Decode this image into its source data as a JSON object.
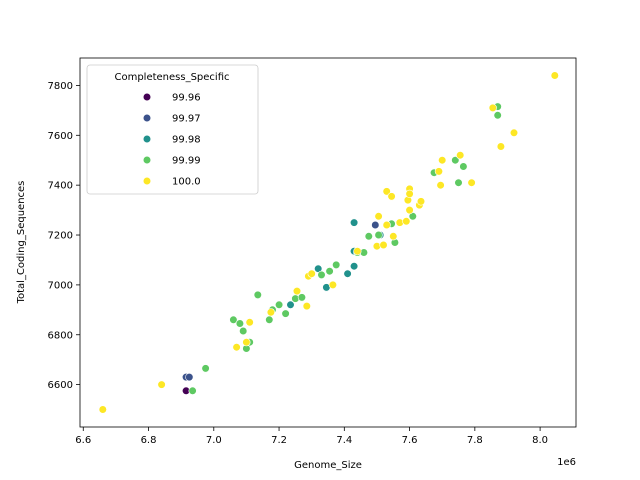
{
  "chart_data": {
    "type": "scatter",
    "xlabel": "Genome_Size",
    "ylabel": "Total_Coding_Sequences",
    "x_offset_label": "1e6",
    "xlim": [
      6.59,
      8.11
    ],
    "ylim": [
      6430,
      7910
    ],
    "x_ticks": [
      6.6,
      6.8,
      7.0,
      7.2,
      7.4,
      7.6,
      7.8,
      8.0
    ],
    "x_tick_labels": [
      "6.6",
      "6.8",
      "7.0",
      "7.2",
      "7.4",
      "7.6",
      "7.8",
      "8.0"
    ],
    "y_ticks": [
      6600,
      6800,
      7000,
      7200,
      7400,
      7600,
      7800
    ],
    "y_tick_labels": [
      "6600",
      "6800",
      "7000",
      "7200",
      "7400",
      "7600",
      "7800"
    ],
    "legend": {
      "title": "Completeness_Specific",
      "placement": "top-left",
      "entries": [
        {
          "label": "99.96",
          "color": "#440154"
        },
        {
          "label": "99.97",
          "color": "#3b528b"
        },
        {
          "label": "99.98",
          "color": "#21918c"
        },
        {
          "label": "99.99",
          "color": "#5ec962"
        },
        {
          "label": "100.0",
          "color": "#fde725"
        }
      ]
    },
    "series": [
      {
        "label": "99.96",
        "color": "#440154",
        "points": [
          [
            6.915,
            6575
          ]
        ]
      },
      {
        "label": "99.97",
        "color": "#3b528b",
        "points": [
          [
            6.915,
            6630
          ],
          [
            6.925,
            6630
          ],
          [
            7.495,
            7240
          ]
        ]
      },
      {
        "label": "99.98",
        "color": "#21918c",
        "points": [
          [
            7.235,
            6920
          ],
          [
            7.32,
            7065
          ],
          [
            7.345,
            6990
          ],
          [
            7.41,
            7045
          ],
          [
            7.43,
            7075
          ],
          [
            7.43,
            7135
          ],
          [
            7.43,
            7250
          ],
          [
            7.51,
            7200
          ]
        ]
      },
      {
        "label": "99.99",
        "color": "#5ec962",
        "points": [
          [
            6.935,
            6575
          ],
          [
            6.975,
            6665
          ],
          [
            7.06,
            6860
          ],
          [
            7.08,
            6845
          ],
          [
            7.09,
            6815
          ],
          [
            7.1,
            6745
          ],
          [
            7.11,
            6770
          ],
          [
            7.135,
            6960
          ],
          [
            7.17,
            6860
          ],
          [
            7.18,
            6900
          ],
          [
            7.2,
            6920
          ],
          [
            7.22,
            6885
          ],
          [
            7.25,
            6945
          ],
          [
            7.27,
            6950
          ],
          [
            7.33,
            7040
          ],
          [
            7.355,
            7055
          ],
          [
            7.375,
            7080
          ],
          [
            7.44,
            7130
          ],
          [
            7.46,
            7130
          ],
          [
            7.475,
            7195
          ],
          [
            7.505,
            7200
          ],
          [
            7.545,
            7245
          ],
          [
            7.555,
            7170
          ],
          [
            7.61,
            7275
          ],
          [
            7.675,
            7450
          ],
          [
            7.74,
            7500
          ],
          [
            7.75,
            7410
          ],
          [
            7.765,
            7475
          ],
          [
            7.87,
            7715
          ],
          [
            7.87,
            7680
          ]
        ]
      },
      {
        "label": "100.0",
        "color": "#fde725",
        "points": [
          [
            6.66,
            6500
          ],
          [
            6.84,
            6600
          ],
          [
            7.07,
            6750
          ],
          [
            7.1,
            6770
          ],
          [
            7.11,
            6850
          ],
          [
            7.175,
            6890
          ],
          [
            7.255,
            6975
          ],
          [
            7.285,
            6915
          ],
          [
            7.29,
            7035
          ],
          [
            7.3,
            7045
          ],
          [
            7.365,
            7000
          ],
          [
            7.44,
            7135
          ],
          [
            7.5,
            7155
          ],
          [
            7.505,
            7275
          ],
          [
            7.52,
            7160
          ],
          [
            7.53,
            7240
          ],
          [
            7.53,
            7375
          ],
          [
            7.545,
            7355
          ],
          [
            7.55,
            7195
          ],
          [
            7.57,
            7250
          ],
          [
            7.59,
            7255
          ],
          [
            7.595,
            7340
          ],
          [
            7.6,
            7385
          ],
          [
            7.6,
            7365
          ],
          [
            7.6,
            7300
          ],
          [
            7.63,
            7320
          ],
          [
            7.635,
            7335
          ],
          [
            7.69,
            7455
          ],
          [
            7.695,
            7400
          ],
          [
            7.7,
            7500
          ],
          [
            7.755,
            7520
          ],
          [
            7.79,
            7410
          ],
          [
            7.855,
            7710
          ],
          [
            7.88,
            7555
          ],
          [
            7.92,
            7610
          ],
          [
            8.045,
            7840
          ]
        ]
      }
    ]
  }
}
